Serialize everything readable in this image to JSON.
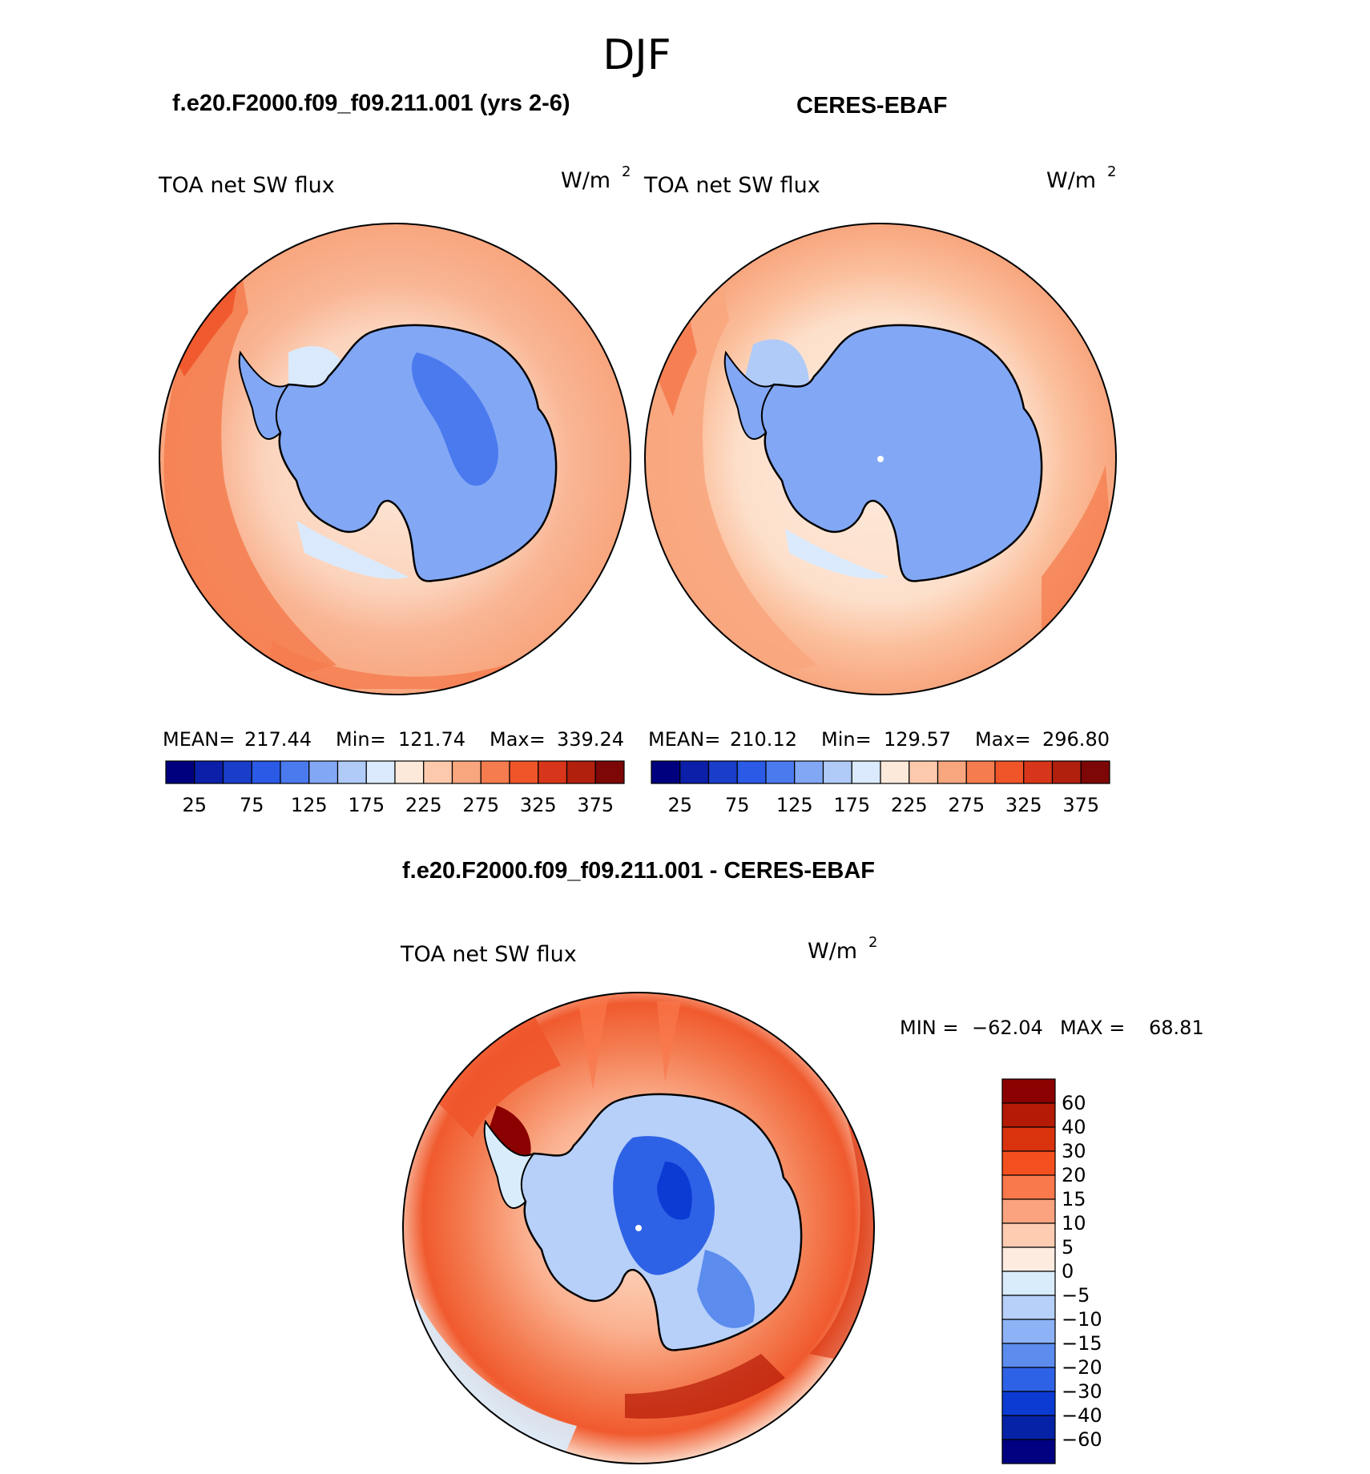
{
  "figure_title": "DJF",
  "units_label": "W/m",
  "units_exponent": "2",
  "chart_data": [
    {
      "type": "heatmap",
      "projection": "south-polar stereographic",
      "panel_title": "f.e20.F2000.f09_f09.211.001 (yrs 2-6)",
      "variable": "TOA net SW flux",
      "stats": {
        "mean_label": "MEAN=",
        "mean": "217.44",
        "min_label": "Min=",
        "min": "121.74",
        "max_label": "Max=",
        "max": "339.24"
      },
      "colorbar": {
        "orientation": "horizontal",
        "ticks": [
          "25",
          "75",
          "125",
          "175",
          "225",
          "275",
          "325",
          "375"
        ],
        "colors": [
          "#00007f",
          "#0b1fa8",
          "#1a3ec9",
          "#2a5ae6",
          "#4a7aee",
          "#82a7f5",
          "#b0cbf8",
          "#daeafc",
          "#fde9da",
          "#fcc9ad",
          "#f8a67e",
          "#f57c4f",
          "#f0552a",
          "#d8361a",
          "#b11f0d",
          "#7d0707"
        ]
      }
    },
    {
      "type": "heatmap",
      "projection": "south-polar stereographic",
      "panel_title": "CERES-EBAF",
      "variable": "TOA net SW flux",
      "stats": {
        "mean_label": "MEAN=",
        "mean": "210.12",
        "min_label": "Min=",
        "min": "129.57",
        "max_label": "Max=",
        "max": "296.80"
      },
      "colorbar": {
        "orientation": "horizontal",
        "ticks": [
          "25",
          "75",
          "125",
          "175",
          "225",
          "275",
          "325",
          "375"
        ],
        "colors": [
          "#00007f",
          "#0b1fa8",
          "#1a3ec9",
          "#2a5ae6",
          "#4a7aee",
          "#82a7f5",
          "#b0cbf8",
          "#daeafc",
          "#fde9da",
          "#fcc9ad",
          "#f8a67e",
          "#f57c4f",
          "#f0552a",
          "#d8361a",
          "#b11f0d",
          "#7d0707"
        ]
      }
    },
    {
      "type": "heatmap",
      "projection": "south-polar stereographic",
      "panel_title": "f.e20.F2000.f09_f09.211.001 - CERES-EBAF",
      "variable": "TOA net SW flux",
      "stats": {
        "min_label": "MIN =",
        "min": "−62.04",
        "max_label": "MAX =",
        "max": "68.81"
      },
      "colorbar": {
        "orientation": "vertical",
        "ticks": [
          "60",
          "40",
          "30",
          "20",
          "15",
          "10",
          "5",
          "0",
          "−5",
          "−10",
          "−15",
          "−20",
          "−30",
          "−40",
          "−60"
        ],
        "colors": [
          "#8b0000",
          "#b51a06",
          "#d9330e",
          "#f44f1e",
          "#f9784c",
          "#fba37f",
          "#fdccb1",
          "#fdebdf",
          "#d9ecfc",
          "#b7d0fa",
          "#8eb2f6",
          "#5b8cee",
          "#2e62e6",
          "#0c3bd4",
          "#0622a6",
          "#000080"
        ]
      }
    }
  ]
}
